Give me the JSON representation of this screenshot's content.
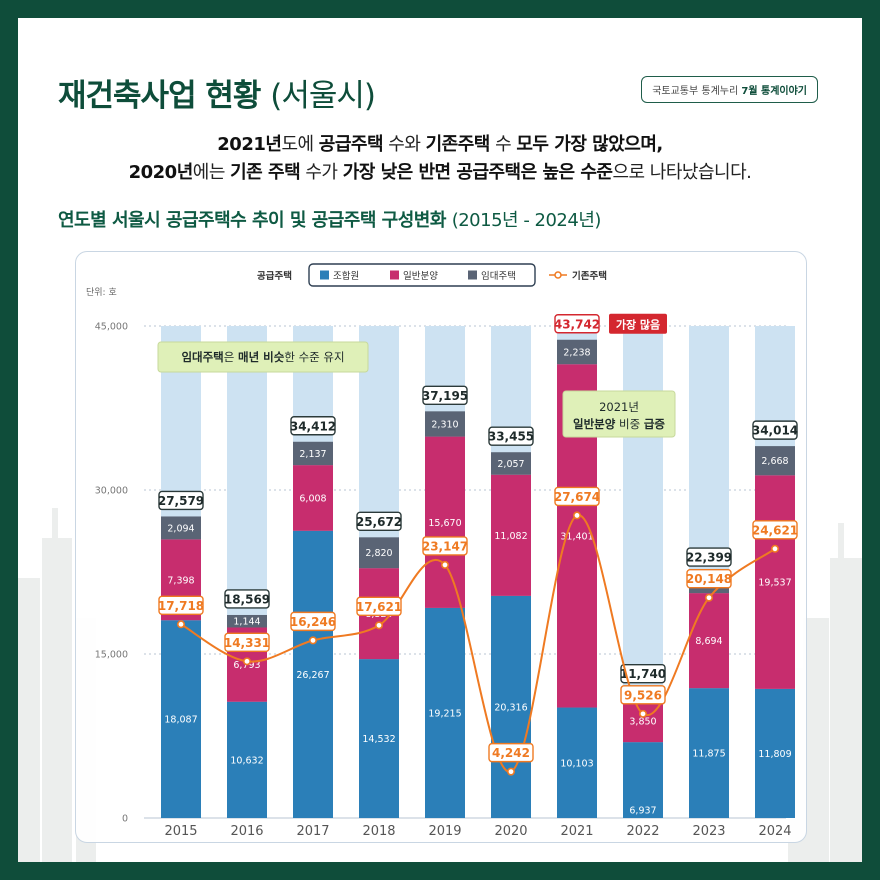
{
  "header": {
    "title": "재건축사업 현황",
    "title_paren": "(서울시)",
    "source_prefix": "국토교통부 통계누리 ",
    "source_bold": "7월 통계이야기"
  },
  "lead": {
    "l1": [
      "2021년",
      "도에 ",
      "공급주택",
      " 수와 ",
      "기존주택",
      " 수 ",
      "모두 가장 많았으며,"
    ],
    "l2": [
      "2020년",
      "에는 ",
      "기존 주택",
      " 수가 ",
      "가장 낮은 반면 공급주택은 높은 수준",
      "으로 나타났습니다."
    ]
  },
  "chart_title": "연도별 서울시 공급주택수 추이 및 공급주택 구성변화",
  "chart_range": "(2015년 - 2024년)",
  "colors": {
    "union": "#2b7fb8",
    "general": "#c72d6e",
    "rental": "#5a6475",
    "existing": "#ef7a22",
    "column_bg": "#cde2f2",
    "highlight_red": "#d4272f",
    "callout_bg": "#dff0b8"
  },
  "chart_data": {
    "type": "bar",
    "stacked": true,
    "unit_label": "단위: 호",
    "categories": [
      "2015",
      "2016",
      "2017",
      "2018",
      "2019",
      "2020",
      "2021",
      "2022",
      "2023",
      "2024"
    ],
    "y_ticks": [
      "0",
      "15,000",
      "30,000",
      "45,000"
    ],
    "ylim": [
      0,
      45000
    ],
    "legend_group": "공급주택",
    "series": [
      {
        "name": "조합원",
        "values": [
          18087,
          10632,
          26267,
          14532,
          19215,
          20316,
          10103,
          6937,
          11875,
          11809
        ]
      },
      {
        "name": "일반분양",
        "values": [
          7398,
          6793,
          6008,
          8320,
          15670,
          11082,
          31401,
          3850,
          8694,
          19537
        ]
      },
      {
        "name": "임대주택",
        "values": [
          2094,
          1144,
          2137,
          2820,
          2310,
          2057,
          2238,
          953,
          1830,
          2668
        ]
      }
    ],
    "totals": [
      27579,
      18569,
      34412,
      25672,
      37195,
      33455,
      43742,
      11740,
      22399,
      34014
    ],
    "line_series": {
      "name": "기존주택",
      "type": "line",
      "values": [
        17718,
        14331,
        16246,
        17621,
        23147,
        4242,
        27674,
        9526,
        20148,
        24621
      ]
    },
    "annotations": {
      "max_badge": "가장 많음",
      "rental_note": [
        "임대주택",
        "은 ",
        "매년 비슷",
        "한 수준 유지"
      ],
      "general_note_l1": "2021년",
      "general_note_l2": [
        "일반분양",
        " 비중 ",
        "급증"
      ]
    }
  }
}
